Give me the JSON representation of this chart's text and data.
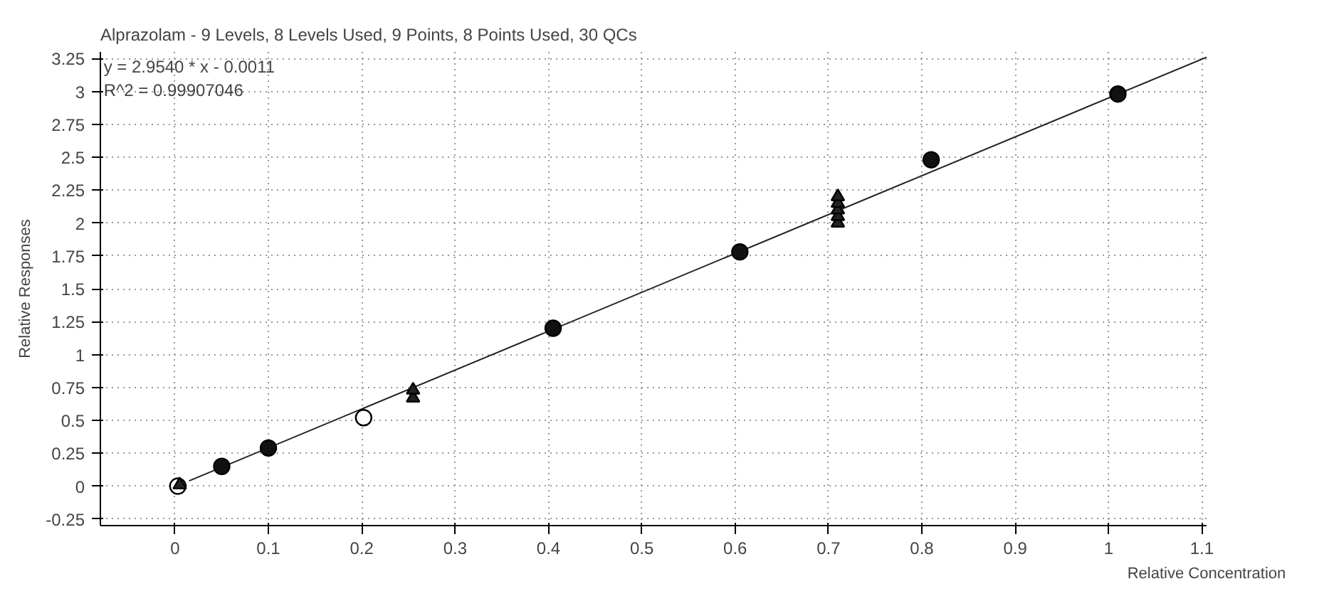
{
  "chart_data": {
    "type": "scatter",
    "title": "Alprazolam - 9 Levels, 8 Levels Used, 9 Points, 8 Points Used, 30 QCs",
    "xlabel": "Relative Concentration",
    "ylabel": "Relative Responses",
    "annotations": [
      "y = 2.9540 * x  - 0.0011",
      "R^2 = 0.99907046"
    ],
    "xlim": [
      -0.08,
      1.105
    ],
    "ylim": [
      -0.3,
      3.3
    ],
    "xticks": [
      0,
      0.1,
      0.2,
      0.3,
      0.4,
      0.5,
      0.6,
      0.7,
      0.8,
      0.9,
      1,
      1.1
    ],
    "yticks": [
      -0.25,
      0,
      0.25,
      0.5,
      0.75,
      1,
      1.25,
      1.5,
      1.75,
      2,
      2.25,
      2.5,
      2.75,
      3,
      3.25
    ],
    "grid": true,
    "series": [
      {
        "type": "line",
        "color": "#222222",
        "line_style": "solid",
        "x": [
          0.015,
          1.105
        ],
        "values": [
          0.04,
          3.26
        ]
      },
      {
        "color": "#ffffff",
        "marker": "circle",
        "x": [
          0.003,
          0.202
        ],
        "values": [
          0.0,
          0.52
        ]
      },
      {
        "color": "#111111",
        "marker": "circle",
        "x": [
          0.05,
          0.1,
          0.405,
          0.605,
          0.81,
          1.01
        ],
        "values": [
          0.15,
          0.29,
          1.2,
          1.78,
          2.48,
          2.98
        ]
      },
      {
        "color": "#222222",
        "marker": "triangle",
        "x": [
          0.005,
          0.255,
          0.255,
          0.71,
          0.71,
          0.71,
          0.71,
          0.71
        ],
        "values": [
          0.01,
          0.67,
          0.73,
          2.0,
          2.05,
          2.1,
          2.15,
          2.2
        ]
      }
    ]
  }
}
